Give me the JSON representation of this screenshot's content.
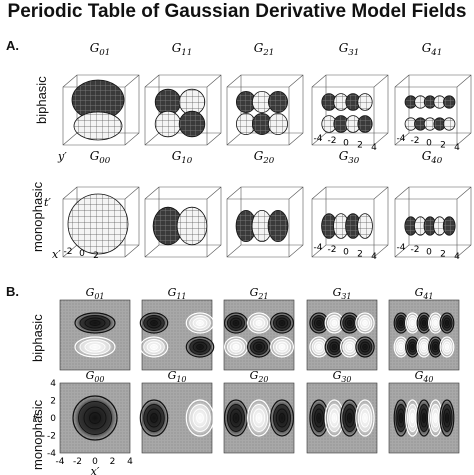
{
  "title": "Periodic Table of Gaussian Derivative Model Fields",
  "sections": {
    "a": "A.",
    "b": "B."
  },
  "rows": {
    "biphasic": "biphasic",
    "monophasic": "monophasic"
  },
  "fields": {
    "biphasic": [
      "G01",
      "G11",
      "G21",
      "G31",
      "G41"
    ],
    "monophasic": [
      "G00",
      "G10",
      "G20",
      "G30",
      "G40"
    ]
  },
  "axes": {
    "x_label": "x′",
    "y_label": "y′",
    "t_label": "t′",
    "ticks_3d": [
      "-4",
      "-2",
      "0",
      "2",
      "4"
    ],
    "ticks_left_3d": [
      "-2",
      "0",
      "2"
    ],
    "ticks_contour": [
      "-4",
      "-2",
      "0",
      "2",
      "4"
    ]
  }
}
